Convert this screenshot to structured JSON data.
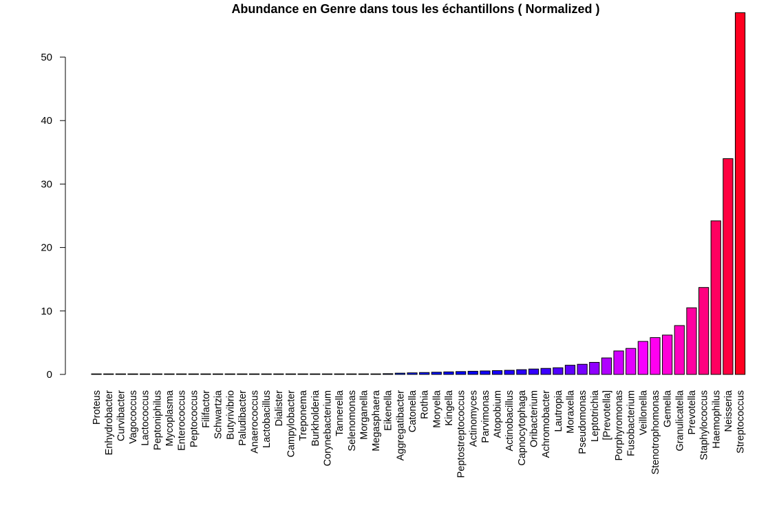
{
  "chart_data": {
    "type": "bar",
    "title": "Abundance en Genre dans tous les échantillons ( Normalized )",
    "xlabel": "",
    "ylabel": "",
    "ylim": [
      0,
      57
    ],
    "yticks": [
      0,
      10,
      20,
      30,
      40,
      50
    ],
    "grid": false,
    "legend": "none",
    "categories": [
      "Proteus",
      "Enhydrobacter",
      "Curvibacter",
      "Vagococcus",
      "Lactococcus",
      "Peptoniphilus",
      "Mycoplasma",
      "Enterococcus",
      "Peptococcus",
      "Filifactor",
      "Schwartzia",
      "Butyrivibrio",
      "Paludibacter",
      "Anaerococcus",
      "Lactobacillus",
      "Dialister",
      "Campylobacter",
      "Treponema",
      "Burkholderia",
      "Corynebacterium",
      "Tannerella",
      "Selenomonas",
      "Morganella",
      "Megasphaera",
      "Eikenella",
      "Aggregatibacter",
      "Catonella",
      "Rothia",
      "Moryella",
      "Kingella",
      "Peptostreptococcus",
      "Actinomyces",
      "Parvimonas",
      "Atopobium",
      "Actinobacillus",
      "Capnocytophaga",
      "Oribacterium",
      "Achromobacter",
      "Lautropia",
      "Moraxella",
      "Pseudomonas",
      "Leptotrichia",
      "[Prevotella]",
      "Porphyromonas",
      "Fusobacterium",
      "Veillonella",
      "Stenotrophomonas",
      "Gemella",
      "Granulicatella",
      "Prevotella",
      "Staphylococcus",
      "Haemophilus",
      "Neisseria",
      "Streptococcus"
    ],
    "values": [
      0.01,
      0.01,
      0.01,
      0.01,
      0.01,
      0.01,
      0.01,
      0.01,
      0.01,
      0.01,
      0.01,
      0.01,
      0.01,
      0.01,
      0.01,
      0.01,
      0.01,
      0.01,
      0.01,
      0.01,
      0.02,
      0.03,
      0.05,
      0.08,
      0.12,
      0.2,
      0.25,
      0.3,
      0.35,
      0.4,
      0.45,
      0.5,
      0.55,
      0.6,
      0.65,
      0.75,
      0.85,
      0.95,
      1.05,
      1.45,
      1.6,
      1.9,
      2.6,
      3.7,
      4.1,
      5.2,
      5.8,
      6.2,
      7.7,
      10.5,
      13.7,
      24.2,
      34.0,
      57.0
    ],
    "colors": [
      "#00ffff",
      "#00f7ff",
      "#00eeff",
      "#00e5ff",
      "#00ddff",
      "#00d4ff",
      "#00ccff",
      "#00c3ff",
      "#00bbff",
      "#00b2ff",
      "#00aaff",
      "#00a1ff",
      "#0099ff",
      "#0090ff",
      "#0088ff",
      "#007fff",
      "#0077ff",
      "#006eff",
      "#0066ff",
      "#005dff",
      "#0055ff",
      "#004cff",
      "#0044ff",
      "#003bff",
      "#0033ff",
      "#002aff",
      "#0022ff",
      "#0019ff",
      "#0011ff",
      "#0008ff",
      "#0000ff",
      "#0800ff",
      "#1100ff",
      "#1900ff",
      "#2200ff",
      "#2a00ff",
      "#3300ff",
      "#3b00ff",
      "#5000ff",
      "#6000ff",
      "#7800ff",
      "#9000ff",
      "#b000ff",
      "#d000ff",
      "#e400ff",
      "#f800ff",
      "#ff00f0",
      "#ff00d8",
      "#ff00c0",
      "#ff00a0",
      "#ff0080",
      "#ff0060",
      "#ff0040",
      "#ff0020"
    ]
  }
}
